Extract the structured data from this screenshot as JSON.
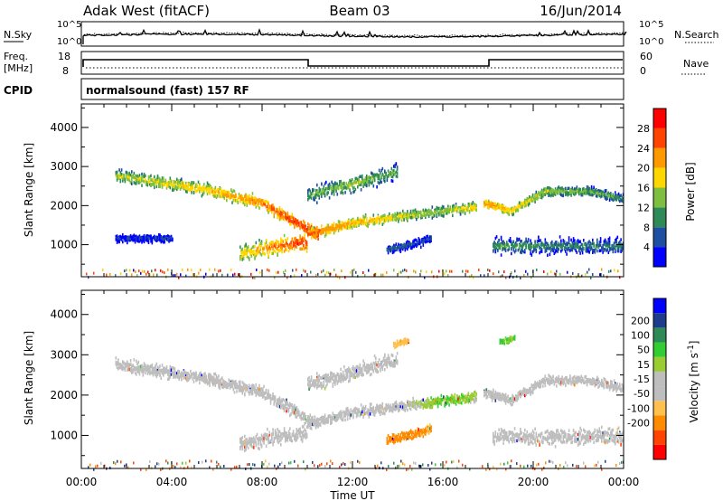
{
  "header": {
    "station": "Adak West (fitACF)",
    "beam": "Beam 03",
    "date": "16/Jun/2014"
  },
  "noise_panel": {
    "left_label": "N.Sky",
    "right_label": "N.Search",
    "left_ticks": [
      "10^5",
      "10^0"
    ],
    "right_ticks": [
      "10^5",
      "10^0"
    ]
  },
  "freq_panel": {
    "left_label_line1": "Freq.",
    "left_label_line2": "[MHz]",
    "right_label": "Nave",
    "left_ticks": [
      "18",
      "8"
    ],
    "right_ticks": [
      "60",
      "0"
    ]
  },
  "cpid": {
    "label": "CPID",
    "value": "normalsound (fast) 157 RF"
  },
  "colors": {
    "power_scale": [
      "#0000ff",
      "#1f4fa0",
      "#2e8b57",
      "#7fbf3f",
      "#ffd700",
      "#ff9900",
      "#ff4400",
      "#ff0000"
    ],
    "velocity_scale": [
      "#ff0000",
      "#ff4400",
      "#ff8c00",
      "#ffc04d",
      "#bebebe",
      "#bebebe",
      "#9acd32",
      "#32cd32",
      "#2e8b57",
      "#1e3c8c",
      "#0000ff"
    ]
  },
  "chart_data": [
    {
      "type": "heatmap",
      "title": "",
      "parameter": "Power",
      "ylabel": "Slant Range [km]",
      "xlabel": "",
      "xlim": [
        "00:00",
        "24:00"
      ],
      "ylim": [
        180,
        4600
      ],
      "yticks": [
        "1000",
        "2000",
        "3000",
        "4000"
      ],
      "xticks": [
        "00:00",
        "04:00",
        "08:00",
        "12:00",
        "16:00",
        "20:00",
        "00:00"
      ],
      "colorbar": {
        "label": "Power [dB]",
        "ticks": [
          "4",
          "8",
          "12",
          "16",
          "20",
          "24",
          "28"
        ],
        "range": [
          0,
          32
        ]
      },
      "echo_bands": [
        {
          "t": [
            1.5,
            5.5,
            8,
            9.5,
            10.5
          ],
          "r": [
            2800,
            2450,
            2100,
            1600,
            1300
          ],
          "width": 300,
          "power": [
            16,
            20,
            24,
            28,
            30
          ]
        },
        {
          "t": [
            10,
            12,
            14,
            16,
            17.5
          ],
          "r": [
            1300,
            1600,
            1750,
            1900,
            2000
          ],
          "width": 250,
          "power": [
            26,
            22,
            18,
            16,
            20
          ]
        },
        {
          "t": [
            10,
            12,
            14
          ],
          "r": [
            2300,
            2600,
            2900
          ],
          "width": 400,
          "power": [
            12,
            16,
            12
          ]
        },
        {
          "t": [
            17.8,
            19,
            20.5,
            22.5,
            24
          ],
          "r": [
            2100,
            1900,
            2400,
            2400,
            2200
          ],
          "width": 220,
          "power": [
            24,
            20,
            16,
            14,
            12
          ]
        },
        {
          "t": [
            18.2,
            21,
            24
          ],
          "r": [
            1000,
            1000,
            1000
          ],
          "width": 380,
          "power": [
            12,
            10,
            10
          ]
        },
        {
          "t": [
            13.5,
            14.6,
            15.5
          ],
          "r": [
            900,
            1050,
            1200
          ],
          "width": 220,
          "power": [
            8,
            8,
            6
          ]
        },
        {
          "t": [
            7,
            8.5,
            10
          ],
          "r": [
            800,
            1000,
            1100
          ],
          "width": 400,
          "power": [
            18,
            24,
            28
          ]
        },
        {
          "t": [
            1.5,
            2.5,
            4
          ],
          "r": [
            1200,
            1200,
            1200
          ],
          "width": 180,
          "power": [
            6,
            6,
            6
          ]
        }
      ]
    },
    {
      "type": "heatmap",
      "title": "",
      "parameter": "Velocity",
      "ylabel": "Slant Range [km]",
      "xlabel": "Time UT",
      "xlim": [
        "00:00",
        "24:00"
      ],
      "ylim": [
        180,
        4600
      ],
      "yticks": [
        "1000",
        "2000",
        "3000",
        "4000"
      ],
      "xticks": [
        "00:00",
        "04:00",
        "08:00",
        "12:00",
        "16:00",
        "20:00",
        "00:00"
      ],
      "colorbar": {
        "label": "Velocity [m s^-1]",
        "ticks": [
          "200",
          "100",
          "50",
          "15",
          "-15",
          "-50",
          "-100",
          "-200"
        ],
        "range": [
          -250,
          250
        ]
      },
      "echo_bands": [
        {
          "t": [
            1.5,
            5.5,
            8,
            9.5,
            10.5
          ],
          "r": [
            2800,
            2450,
            2100,
            1600,
            1300
          ],
          "width": 300,
          "velocity": [
            0,
            0,
            0,
            0,
            0
          ]
        },
        {
          "t": [
            10,
            12,
            14,
            16,
            17.5
          ],
          "r": [
            1300,
            1600,
            1750,
            1900,
            2000
          ],
          "width": 250,
          "velocity": [
            0,
            0,
            0,
            30,
            20
          ]
        },
        {
          "t": [
            10,
            12,
            14
          ],
          "r": [
            2300,
            2600,
            2900
          ],
          "width": 400,
          "velocity": [
            0,
            0,
            0
          ]
        },
        {
          "t": [
            17.8,
            19,
            20.5,
            22.5,
            24
          ],
          "r": [
            2100,
            1900,
            2400,
            2400,
            2200
          ],
          "width": 220,
          "velocity": [
            0,
            0,
            0,
            0,
            0
          ]
        },
        {
          "t": [
            18.2,
            21,
            24
          ],
          "r": [
            1000,
            1000,
            1000
          ],
          "width": 380,
          "velocity": [
            0,
            0,
            0
          ]
        },
        {
          "t": [
            13.5,
            14.6,
            15.5
          ],
          "r": [
            900,
            1050,
            1200
          ],
          "width": 220,
          "velocity": [
            -60,
            -60,
            -50
          ]
        },
        {
          "t": [
            7,
            8.5,
            10
          ],
          "r": [
            800,
            1000,
            1100
          ],
          "width": 400,
          "velocity": [
            0,
            0,
            0
          ]
        },
        {
          "t": [
            13.8,
            14.5
          ],
          "r": [
            3300,
            3400
          ],
          "width": 150,
          "velocity": [
            -40,
            -40
          ]
        },
        {
          "t": [
            18.5,
            19.2
          ],
          "r": [
            3350,
            3450
          ],
          "width": 150,
          "velocity": [
            40,
            30
          ]
        }
      ]
    }
  ]
}
